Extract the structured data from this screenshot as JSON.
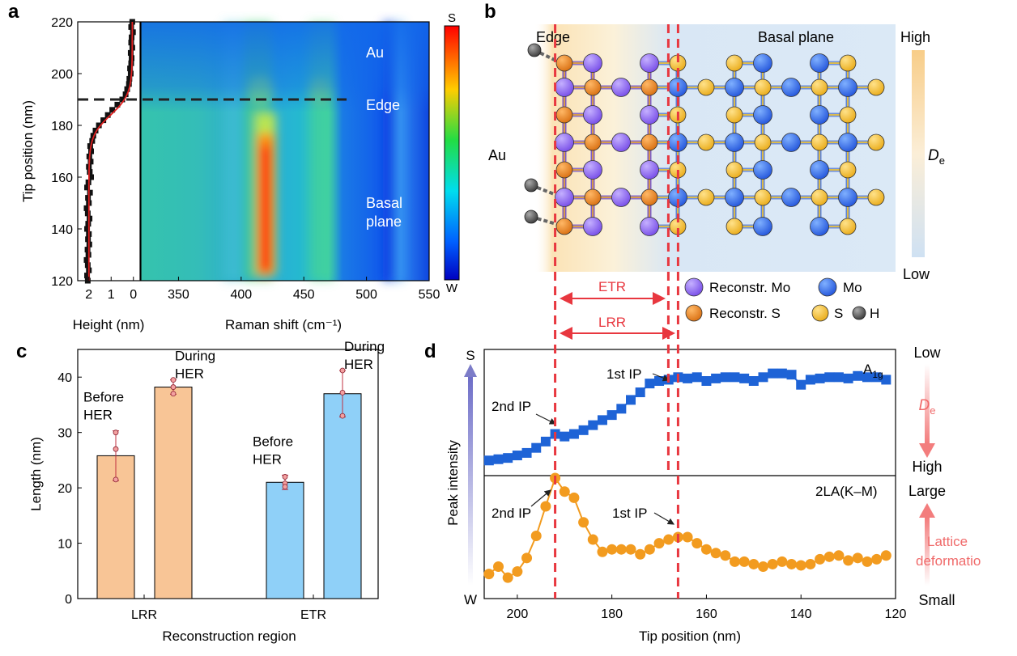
{
  "colors": {
    "mo_reconstr": "#8b5cf6",
    "mo": "#2563eb",
    "s_reconstr": "#e07b16",
    "s": "#f5c033",
    "h": "#555555",
    "bar_lrr": "#f8c596",
    "bar_etr": "#8fd0f8",
    "blue_series": "#1e63d6",
    "orange_series": "#f29b1f",
    "red_dash": "#e8373f"
  },
  "panels": {
    "a": "a",
    "b": "b",
    "c": "c",
    "d": "d"
  },
  "chart_data": [
    {
      "id": "a-left",
      "type": "line",
      "xlabel": "Height (nm)",
      "ylabel": "Tip position (nm)",
      "xlim": [
        2.5,
        -0.3
      ],
      "ylim": [
        120,
        220
      ],
      "xticks": [
        "2",
        "1",
        "0"
      ],
      "yticks": [
        "120",
        "140",
        "160",
        "180",
        "200",
        "220"
      ],
      "edge_line_y": 190,
      "series": [
        {
          "name": "measured height",
          "y": [
            120,
            122,
            124,
            126,
            128,
            130,
            132,
            134,
            136,
            138,
            140,
            142,
            144,
            146,
            148,
            150,
            152,
            154,
            156,
            158,
            160,
            162,
            164,
            166,
            168,
            170,
            172,
            174,
            176,
            178,
            180,
            182,
            184,
            186,
            188,
            190,
            192,
            194,
            196,
            198,
            200,
            202,
            204,
            206,
            208,
            210,
            212,
            214,
            216,
            218,
            220
          ],
          "x": [
            2.05,
            2.08,
            2.0,
            2.05,
            2.1,
            2.02,
            2.06,
            1.98,
            2.04,
            2.0,
            2.08,
            2.03,
            1.97,
            2.05,
            2.1,
            2.0,
            2.04,
            1.95,
            2.08,
            2.02,
            1.9,
            1.96,
            2.0,
            1.92,
            1.98,
            1.9,
            1.94,
            1.85,
            1.8,
            1.7,
            1.55,
            1.35,
            1.15,
            0.95,
            0.72,
            0.5,
            0.35,
            0.28,
            0.2,
            0.18,
            0.12,
            0.15,
            0.1,
            0.08,
            0.12,
            0.05,
            0.1,
            0.08,
            0.02,
            0.1,
            0.05
          ]
        },
        {
          "name": "sigmoid fit",
          "fit": {
            "top": 2.0,
            "bottom": 0.05,
            "center": 184,
            "scale": 4
          }
        }
      ]
    },
    {
      "id": "a-map",
      "type": "heatmap",
      "xlabel": "Raman shift (cm⁻¹)",
      "xlim": [
        320,
        550
      ],
      "xticks": [
        "350",
        "400",
        "450",
        "500",
        "550"
      ],
      "ylim": [
        120,
        220
      ],
      "colorbar": [
        "S",
        "W"
      ],
      "regions": [
        "Au",
        "Edge",
        "Basal plane"
      ],
      "regions_split": {
        "basal": [
          "Basal",
          "plane"
        ]
      }
    },
    {
      "id": "b",
      "type": "diagram",
      "labels": {
        "edge": "Edge",
        "basal": "Basal plane",
        "au": "Au",
        "high": "High",
        "low": "Low",
        "de": "D",
        "de_sub": "e",
        "etr": "ETR",
        "lrr": "LRR"
      },
      "legend": [
        "Reconstr. Mo",
        "Mo",
        "Reconstr. S",
        "S",
        "H"
      ]
    },
    {
      "id": "c",
      "type": "bar",
      "xlabel": "Reconstruction region",
      "ylabel": "Length (nm)",
      "ylim": [
        0,
        45
      ],
      "yticks": [
        "0",
        "10",
        "20",
        "30",
        "40"
      ],
      "categories": [
        "LRR",
        "ETR"
      ],
      "series": [
        {
          "name": "Before HER",
          "values": [
            25.8,
            21.0
          ],
          "errors": [
            4.5,
            1.3
          ],
          "points": [
            [
              30,
              27,
              21.5
            ],
            [
              22,
              20.8,
              20.2
            ]
          ]
        },
        {
          "name": "During HER",
          "values": [
            38.2,
            37.0
          ],
          "errors": [
            1.3,
            4.2
          ],
          "points": [
            [
              39.5,
              38.2,
              37.0
            ],
            [
              41.2,
              37.2,
              33.0
            ]
          ]
        }
      ],
      "bar_labels": [
        [
          "Before",
          "HER"
        ],
        [
          "During",
          "HER"
        ],
        [
          "Before",
          "HER"
        ],
        [
          "During",
          "HER"
        ]
      ]
    },
    {
      "id": "d",
      "type": "line",
      "xlabel": "Tip position (nm)",
      "ylabel": "Peak intensity",
      "xlim": [
        207,
        120
      ],
      "xticks": [
        "200",
        "180",
        "160",
        "140",
        "120"
      ],
      "ylabel_top": "S",
      "ylabel_bottom": "W",
      "ip_lines_x": [
        192,
        166
      ],
      "series": [
        {
          "name": "A",
          "name_sub": "1g",
          "x": [
            206,
            204,
            202,
            200,
            198,
            196,
            194,
            192,
            190,
            188,
            186,
            184,
            182,
            180,
            178,
            176,
            174,
            172,
            170,
            168,
            166,
            164,
            162,
            160,
            158,
            156,
            154,
            152,
            150,
            148,
            146,
            144,
            142,
            140,
            138,
            136,
            134,
            132,
            130,
            128,
            126,
            124,
            122
          ],
          "y": [
            0.12,
            0.13,
            0.14,
            0.16,
            0.18,
            0.22,
            0.27,
            0.33,
            0.31,
            0.33,
            0.36,
            0.4,
            0.44,
            0.48,
            0.53,
            0.6,
            0.66,
            0.73,
            0.75,
            0.76,
            0.78,
            0.77,
            0.78,
            0.75,
            0.77,
            0.78,
            0.78,
            0.77,
            0.75,
            0.78,
            0.81,
            0.81,
            0.8,
            0.72,
            0.76,
            0.77,
            0.78,
            0.78,
            0.77,
            0.79,
            0.78,
            0.78,
            0.76
          ]
        },
        {
          "name": "2LA(K–M)",
          "x": [
            206,
            204,
            202,
            200,
            198,
            196,
            194,
            192,
            190,
            188,
            186,
            184,
            182,
            180,
            178,
            176,
            174,
            172,
            170,
            168,
            166,
            164,
            162,
            160,
            158,
            156,
            154,
            152,
            150,
            148,
            146,
            144,
            142,
            140,
            138,
            136,
            134,
            132,
            130,
            128,
            126,
            124,
            122
          ],
          "y": [
            0.2,
            0.26,
            0.17,
            0.22,
            0.33,
            0.51,
            0.75,
            0.98,
            0.87,
            0.82,
            0.62,
            0.48,
            0.38,
            0.4,
            0.4,
            0.4,
            0.36,
            0.4,
            0.45,
            0.48,
            0.5,
            0.5,
            0.45,
            0.4,
            0.37,
            0.35,
            0.3,
            0.3,
            0.28,
            0.26,
            0.28,
            0.3,
            0.28,
            0.27,
            0.28,
            0.32,
            0.34,
            0.35,
            0.31,
            0.33,
            0.3,
            0.32,
            0.35
          ]
        }
      ],
      "annotations": {
        "second_ip": "2nd IP",
        "first_ip": "1st IP"
      },
      "right_labels": {
        "low": "Low",
        "high": "High",
        "de": "D",
        "de_sub": "e",
        "large": "Large",
        "small": "Small",
        "lattice1": "Lattice",
        "lattice2": "deformatio"
      }
    }
  ]
}
